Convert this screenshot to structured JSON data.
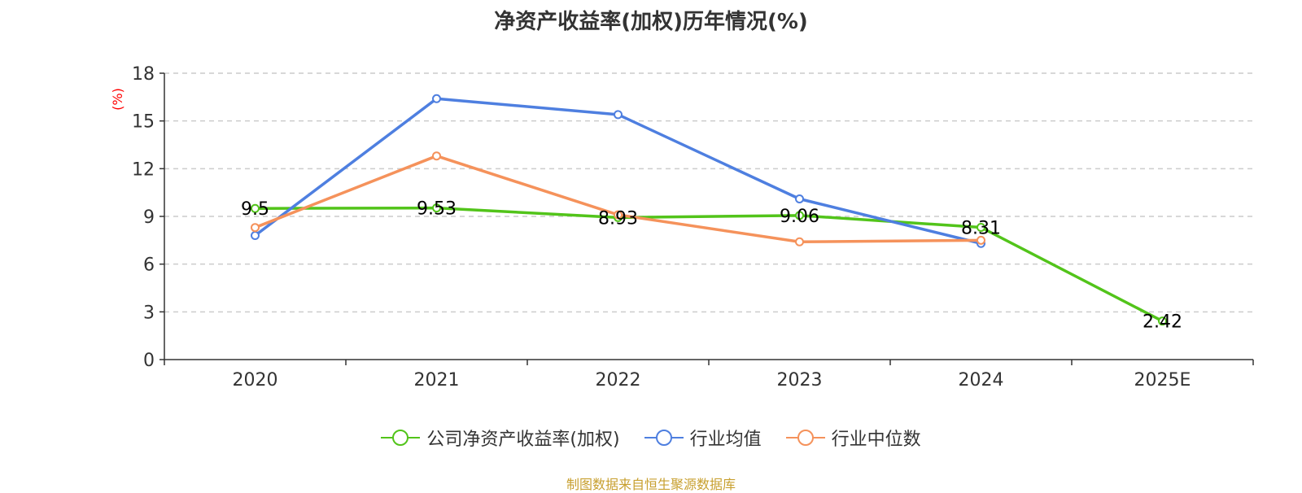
{
  "chart_data": {
    "type": "line",
    "title": "净资产收益率(加权)历年情况(%)",
    "ylabel": "(%)",
    "xlabel": "",
    "ylim": [
      0,
      18
    ],
    "yticks": [
      0,
      3,
      6,
      9,
      12,
      15,
      18
    ],
    "categories": [
      "2020",
      "2021",
      "2022",
      "2023",
      "2024",
      "2025E"
    ],
    "grid": true,
    "legend_position": "bottom",
    "series": [
      {
        "name": "公司净资产收益率(加权)",
        "color": "#52c41a",
        "values": [
          9.5,
          9.53,
          8.93,
          9.06,
          8.31,
          2.42
        ],
        "labels": [
          "9.5",
          "9.53",
          "8.93",
          "9.06",
          "8.31",
          "2.42"
        ]
      },
      {
        "name": "行业均值",
        "color": "#4e7fe0",
        "values": [
          7.8,
          16.4,
          15.4,
          10.1,
          7.3,
          null
        ]
      },
      {
        "name": "行业中位数",
        "color": "#f5925b",
        "values": [
          8.3,
          12.8,
          9.1,
          7.4,
          7.5,
          null
        ]
      }
    ]
  },
  "source_note": "制图数据来自恒生聚源数据库"
}
